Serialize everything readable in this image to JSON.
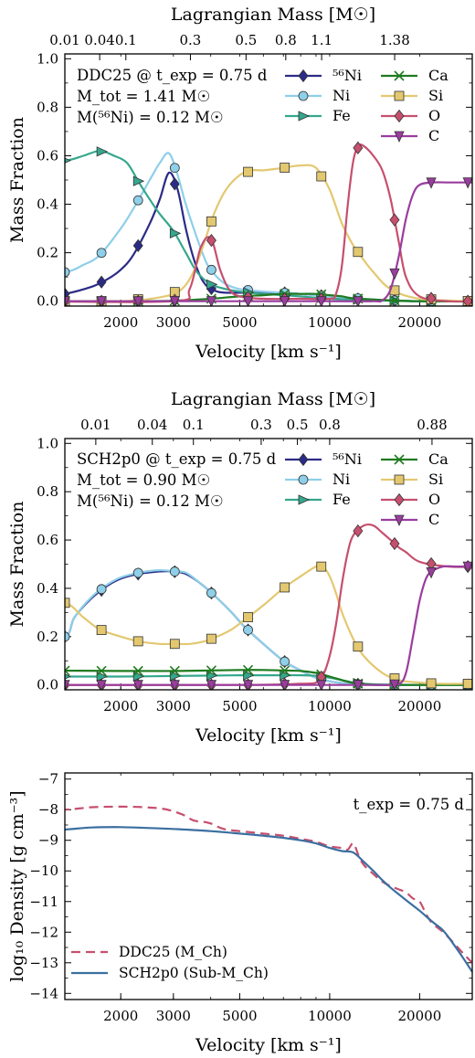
{
  "chart_data": [
    {
      "type": "line",
      "xscale": "log",
      "xlim": [
        1300,
        30000
      ],
      "ylim": [
        -0.02,
        1.02
      ],
      "xlabel": "Velocity [km s⁻¹]",
      "ylabel": "Mass Fraction",
      "xticks": [
        2000,
        3000,
        5000,
        10000,
        20000
      ],
      "yticks": [
        0.0,
        0.2,
        0.4,
        0.6,
        0.8,
        1.0
      ],
      "top_axis": {
        "label": "Lagrangian Mass [M☉]",
        "ticks": [
          {
            "v": 1300,
            "label": "0.01"
          },
          {
            "v": 1700,
            "label": "0.04"
          },
          {
            "v": 2080,
            "label": "0.1"
          },
          {
            "v": 3420,
            "label": "0.3"
          },
          {
            "v": 5250,
            "label": "0.5"
          },
          {
            "v": 7130,
            "label": "0.8"
          },
          {
            "v": 9400,
            "label": "1.1"
          },
          {
            "v": 16500,
            "label": "1.38"
          }
        ]
      },
      "annotation": [
        "DDC25 @ t_exp = 0.75 d",
        "M_tot = 1.41 M☉",
        "M(⁵⁶Ni) = 0.12 M☉"
      ],
      "legend": "top-right",
      "series": [
        {
          "name": "⁵⁶Ni",
          "color": "#2b2b86",
          "marker": "diamond",
          "x": [
            1000,
            1300,
            1600,
            1800,
            2000,
            2200,
            2500,
            2700,
            2900,
            3100,
            3300,
            3500,
            3700,
            3900,
            4200,
            4500,
            5000,
            6000,
            7000,
            8000,
            10000,
            12000,
            15000,
            20000,
            25000,
            30000
          ],
          "y": [
            0.01,
            0.03,
            0.06,
            0.09,
            0.13,
            0.19,
            0.32,
            0.42,
            0.53,
            0.46,
            0.3,
            0.18,
            0.1,
            0.06,
            0.04,
            0.035,
            0.035,
            0.035,
            0.035,
            0.03,
            0.02,
            0.01,
            0.005,
            0.0,
            0.0,
            0.0
          ]
        },
        {
          "name": "Ni",
          "color": "#8ecfe9",
          "marker": "circle",
          "x": [
            1000,
            1300,
            1500,
            1700,
            2000,
            2200,
            2500,
            2700,
            2900,
            3100,
            3300,
            3600,
            3900,
            4200,
            4500,
            5000,
            6000,
            7000,
            8000,
            10000,
            15000,
            20000,
            25000,
            30000
          ],
          "y": [
            0.12,
            0.12,
            0.15,
            0.19,
            0.3,
            0.38,
            0.5,
            0.57,
            0.61,
            0.52,
            0.4,
            0.26,
            0.15,
            0.1,
            0.07,
            0.05,
            0.04,
            0.035,
            0.03,
            0.02,
            0.005,
            0.0,
            0.0,
            0.0
          ]
        },
        {
          "name": "Fe",
          "color": "#35a78d",
          "marker": "triangle-right",
          "x": [
            1000,
            1300,
            1500,
            1700,
            1900,
            2100,
            2300,
            2500,
            2700,
            3000,
            3300,
            3600,
            4000,
            4500,
            5000,
            6000,
            8000,
            10000,
            15000,
            20000,
            30000
          ],
          "y": [
            0.58,
            0.58,
            0.6,
            0.62,
            0.6,
            0.57,
            0.49,
            0.42,
            0.36,
            0.29,
            0.2,
            0.12,
            0.07,
            0.05,
            0.04,
            0.03,
            0.02,
            0.01,
            0.003,
            0.0,
            0.0
          ]
        },
        {
          "name": "Ca",
          "color": "#1f7a1f",
          "marker": "x",
          "x": [
            1000,
            2000,
            3000,
            4000,
            5000,
            6000,
            7000,
            8000,
            9000,
            10000,
            11000,
            12000,
            15000,
            20000,
            30000
          ],
          "y": [
            0.0,
            0.0,
            0.002,
            0.01,
            0.02,
            0.025,
            0.03,
            0.03,
            0.03,
            0.025,
            0.02,
            0.012,
            0.005,
            0.0,
            0.0
          ]
        },
        {
          "name": "Si",
          "color": "#e3c870",
          "marker": "square",
          "x": [
            1000,
            2000,
            2800,
            3200,
            3500,
            3800,
            4100,
            4500,
            5000,
            5500,
            6000,
            7000,
            8000,
            9000,
            10000,
            11000,
            12000,
            13000,
            14000,
            16000,
            20000,
            30000
          ],
          "y": [
            0.0,
            0.0,
            0.02,
            0.05,
            0.12,
            0.24,
            0.36,
            0.46,
            0.52,
            0.54,
            0.54,
            0.55,
            0.56,
            0.55,
            0.46,
            0.32,
            0.23,
            0.17,
            0.12,
            0.05,
            0.01,
            0.0
          ]
        },
        {
          "name": "O",
          "color": "#c64f6e",
          "marker": "diamond",
          "x": [
            1000,
            3000,
            3400,
            3700,
            4000,
            4300,
            4600,
            5000,
            6000,
            8000,
            10000,
            10500,
            11000,
            11500,
            12000,
            12500,
            13000,
            14000,
            15000,
            16000,
            17000,
            18000,
            20000,
            25000,
            30000
          ],
          "y": [
            0.0,
            0.0,
            0.05,
            0.22,
            0.26,
            0.13,
            0.05,
            0.02,
            0.01,
            0.01,
            0.01,
            0.03,
            0.15,
            0.4,
            0.58,
            0.64,
            0.64,
            0.6,
            0.54,
            0.42,
            0.25,
            0.1,
            0.02,
            0.0,
            0.0
          ]
        },
        {
          "name": "C",
          "color": "#9a3d9e",
          "marker": "triangle-down",
          "x": [
            1000,
            10000,
            14000,
            15000,
            16000,
            17000,
            18000,
            19000,
            20000,
            22000,
            25000,
            30000
          ],
          "y": [
            0.0,
            0.0,
            0.0,
            0.003,
            0.05,
            0.18,
            0.34,
            0.44,
            0.48,
            0.49,
            0.49,
            0.49
          ]
        }
      ]
    },
    {
      "type": "line",
      "xscale": "log",
      "xlim": [
        1300,
        30000
      ],
      "ylim": [
        -0.02,
        1.02
      ],
      "xlabel": "Velocity [km s⁻¹]",
      "ylabel": "Mass Fraction",
      "xticks": [
        2000,
        3000,
        5000,
        10000,
        20000
      ],
      "yticks": [
        0.0,
        0.2,
        0.4,
        0.6,
        0.8,
        1.0
      ],
      "top_axis": {
        "label": "Lagrangian Mass [M☉]",
        "ticks": [
          {
            "v": 1650,
            "label": "0.01"
          },
          {
            "v": 2550,
            "label": "0.04"
          },
          {
            "v": 3500,
            "label": "0.1"
          },
          {
            "v": 5900,
            "label": "0.3"
          },
          {
            "v": 7800,
            "label": "0.5"
          },
          {
            "v": 10000,
            "label": "0.8"
          },
          {
            "v": 22000,
            "label": "0.88"
          }
        ]
      },
      "annotation": [
        "SCH2p0 @ t_exp = 0.75 d",
        "M_tot = 0.90 M☉",
        "M(⁵⁶Ni) = 0.12 M☉"
      ],
      "legend": "top-right",
      "series": [
        {
          "name": "⁵⁶Ni",
          "color": "#2b2b86",
          "marker": "diamond",
          "x": [
            1000,
            1300,
            1400,
            1600,
            1800,
            2000,
            2300,
            2700,
            3000,
            3300,
            3700,
            4200,
            4700,
            5200,
            6000,
            7000,
            8000,
            9000,
            10000,
            11000,
            12000,
            13000,
            15000,
            20000,
            30000
          ],
          "y": [
            0.2,
            0.2,
            0.28,
            0.36,
            0.41,
            0.44,
            0.46,
            0.47,
            0.47,
            0.46,
            0.42,
            0.36,
            0.3,
            0.24,
            0.17,
            0.1,
            0.06,
            0.03,
            0.015,
            0.008,
            0.004,
            0.002,
            0.0,
            0.0,
            0.0
          ]
        },
        {
          "name": "Ni",
          "color": "#8ecfe9",
          "marker": "circle",
          "x": [
            1000,
            1300,
            1400,
            1600,
            1800,
            2000,
            2300,
            2700,
            3000,
            3300,
            3700,
            4200,
            4700,
            5200,
            6000,
            7000,
            8000,
            9000,
            10000,
            11000,
            12000,
            13000,
            15000,
            20000,
            30000
          ],
          "y": [
            0.2,
            0.2,
            0.28,
            0.365,
            0.415,
            0.445,
            0.465,
            0.475,
            0.47,
            0.465,
            0.42,
            0.36,
            0.3,
            0.24,
            0.17,
            0.1,
            0.06,
            0.03,
            0.015,
            0.008,
            0.004,
            0.002,
            0.0,
            0.0,
            0.0
          ]
        },
        {
          "name": "Fe",
          "color": "#35a78d",
          "marker": "triangle-right",
          "x": [
            1000,
            2000,
            3000,
            5000,
            7000,
            8000,
            9000,
            10000,
            11000,
            12000,
            13000,
            15000,
            20000,
            30000
          ],
          "y": [
            0.035,
            0.035,
            0.037,
            0.04,
            0.04,
            0.04,
            0.038,
            0.03,
            0.02,
            0.01,
            0.005,
            0.002,
            0.0,
            0.0
          ]
        },
        {
          "name": "Ca",
          "color": "#1f7a1f",
          "marker": "x",
          "x": [
            1000,
            2000,
            3000,
            4000,
            5000,
            6000,
            7000,
            8000,
            9000,
            10000,
            11000,
            12000,
            13000,
            15000,
            20000,
            30000
          ],
          "y": [
            0.06,
            0.058,
            0.058,
            0.06,
            0.062,
            0.062,
            0.06,
            0.058,
            0.05,
            0.035,
            0.02,
            0.008,
            0.003,
            0.0,
            0.0,
            0.0
          ]
        },
        {
          "name": "Si",
          "color": "#e3c870",
          "marker": "square",
          "x": [
            1000,
            1300,
            1500,
            1700,
            2000,
            2300,
            2700,
            3000,
            3400,
            3800,
            4200,
            4700,
            5200,
            6000,
            7000,
            8000,
            9000,
            9500,
            10000,
            10500,
            11000,
            12000,
            13000,
            15000,
            17000,
            20000,
            23000,
            30000
          ],
          "y": [
            0.34,
            0.34,
            0.28,
            0.23,
            0.2,
            0.18,
            0.17,
            0.17,
            0.17,
            0.18,
            0.2,
            0.23,
            0.27,
            0.33,
            0.4,
            0.45,
            0.49,
            0.49,
            0.45,
            0.38,
            0.3,
            0.19,
            0.12,
            0.05,
            0.02,
            0.01,
            0.005,
            0.005
          ]
        },
        {
          "name": "O",
          "color": "#c64f6e",
          "marker": "diamond",
          "x": [
            1000,
            5000,
            8000,
            9000,
            9500,
            10000,
            10500,
            11000,
            11500,
            12000,
            13000,
            14000,
            15000,
            16000,
            17000,
            18000,
            20000,
            25000,
            30000
          ],
          "y": [
            0.0,
            0.0,
            0.005,
            0.01,
            0.04,
            0.12,
            0.25,
            0.42,
            0.55,
            0.62,
            0.66,
            0.66,
            0.63,
            0.6,
            0.57,
            0.55,
            0.51,
            0.49,
            0.49
          ]
        },
        {
          "name": "C",
          "color": "#9a3d9e",
          "marker": "triangle-down",
          "x": [
            1000,
            12000,
            15000,
            17000,
            18000,
            19000,
            20000,
            21000,
            22000,
            24000,
            27000,
            30000
          ],
          "y": [
            0.0,
            0.0,
            0.0,
            0.003,
            0.05,
            0.2,
            0.35,
            0.44,
            0.47,
            0.49,
            0.49,
            0.49
          ]
        }
      ]
    },
    {
      "type": "line",
      "xscale": "log",
      "xlim": [
        1300,
        30000
      ],
      "ylim": [
        -14.2,
        -6.8
      ],
      "xlabel": "Velocity [km s⁻¹]",
      "ylabel": "log₁₀ Density [g cm⁻³]",
      "xticks": [
        2000,
        3000,
        5000,
        10000,
        20000
      ],
      "yticks": [
        -14,
        -13,
        -12,
        -11,
        -10,
        -9,
        -8,
        -7
      ],
      "annotation": [
        "t_exp = 0.75 d"
      ],
      "legend": "bottom-left",
      "series": [
        {
          "name": "DDC25 (M_Ch)",
          "color": "#c64f6e",
          "dash": true,
          "x": [
            1000,
            1300,
            1600,
            2000,
            2400,
            2800,
            3200,
            3500,
            3800,
            4000,
            4200,
            4500,
            5000,
            6000,
            7000,
            8000,
            9000,
            10000,
            11000,
            11500,
            12000,
            12500,
            13000,
            14000,
            15000,
            16000,
            17000,
            18000,
            19000,
            20000,
            21000,
            22000,
            24000,
            26000,
            28000,
            30000
          ],
          "y": [
            -8.0,
            -8.0,
            -7.92,
            -7.9,
            -7.92,
            -7.98,
            -8.15,
            -8.35,
            -8.4,
            -8.45,
            -8.55,
            -8.65,
            -8.7,
            -8.78,
            -8.85,
            -8.95,
            -9.05,
            -9.2,
            -9.25,
            -9.3,
            -9.1,
            -9.5,
            -9.8,
            -10.1,
            -10.35,
            -10.5,
            -10.6,
            -10.7,
            -10.9,
            -11.0,
            -11.4,
            -11.7,
            -12.0,
            -12.35,
            -12.7,
            -13.0
          ]
        },
        {
          "name": "SCH2p0 (Sub-M_Ch)",
          "color": "#3b6fa0",
          "dash": false,
          "x": [
            1000,
            1300,
            1600,
            2000,
            2500,
            3000,
            4000,
            5000,
            6000,
            7000,
            8000,
            9000,
            10000,
            11000,
            12000,
            13000,
            14000,
            15000,
            16000,
            18000,
            20000,
            22000,
            24000,
            26000,
            28000,
            30000
          ],
          "y": [
            -8.7,
            -8.65,
            -8.58,
            -8.57,
            -8.6,
            -8.63,
            -8.7,
            -8.78,
            -8.85,
            -8.92,
            -9.0,
            -9.1,
            -9.25,
            -9.35,
            -9.4,
            -9.7,
            -10.0,
            -10.3,
            -10.55,
            -10.95,
            -11.3,
            -11.65,
            -11.95,
            -12.4,
            -12.85,
            -13.3
          ]
        }
      ]
    }
  ]
}
